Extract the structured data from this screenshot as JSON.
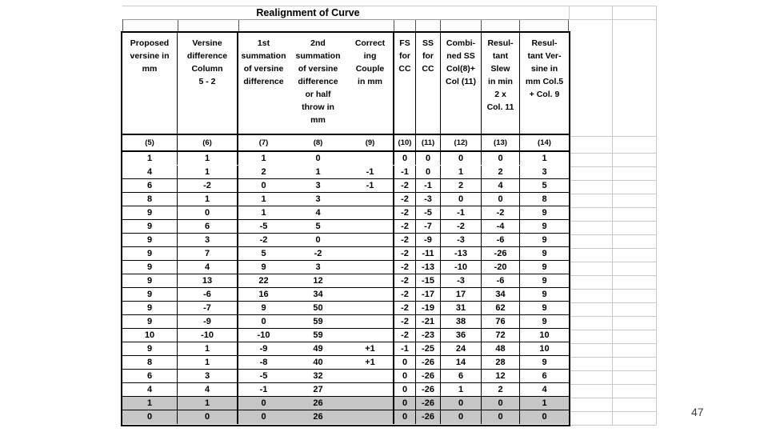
{
  "slide": {
    "title": "Realignment of Curve",
    "page_number": "47"
  },
  "table": {
    "headers": [
      {
        "label": "Proposed\nversine in\nmm",
        "col_no": "(5)"
      },
      {
        "label": "Versine\ndifference\nColumn\n5 - 2",
        "col_no": "(6)"
      },
      {
        "label": "1st\nsummation\nof versine\ndifference",
        "col_no": "(7)"
      },
      {
        "label": "2nd\nsummation\nof versine\ndifference\nor half\nthrow in\nmm",
        "col_no": "(8)"
      },
      {
        "label": "Correct\ning\nCouple\nin mm",
        "col_no": "(9)"
      },
      {
        "label": "FS\nfor\nCC",
        "col_no": "(10)"
      },
      {
        "label": "SS\nfor\nCC",
        "col_no": "(11)"
      },
      {
        "label": "Combi-\nned SS\nCol(8)+\nCol (11)",
        "col_no": "(12)"
      },
      {
        "label": "Resul-\ntant\nSlew\nin min\n2 x\nCol. 11",
        "col_no": "(13)"
      },
      {
        "label": "Resul-\ntant Ver-\nsine in\nmm Col.5\n+ Col. 9",
        "col_no": "(14)"
      }
    ],
    "rows": [
      {
        "shaded": false,
        "values": [
          "1",
          "1",
          "1",
          "0",
          "",
          "0",
          "0",
          "0",
          "0",
          "1"
        ]
      },
      {
        "shaded": false,
        "values": [
          "4",
          "1",
          "2",
          "1",
          "-1",
          "-1",
          "0",
          "1",
          "2",
          "3"
        ]
      },
      {
        "shaded": false,
        "values": [
          "6",
          "-2",
          "0",
          "3",
          "-1",
          "-2",
          "-1",
          "2",
          "4",
          "5"
        ]
      },
      {
        "shaded": false,
        "values": [
          "8",
          "1",
          "1",
          "3",
          "",
          "-2",
          "-3",
          "0",
          "0",
          "8"
        ]
      },
      {
        "shaded": false,
        "values": [
          "9",
          "0",
          "1",
          "4",
          "",
          "-2",
          "-5",
          "-1",
          "-2",
          "9"
        ]
      },
      {
        "shaded": false,
        "values": [
          "9",
          "6",
          "-5",
          "5",
          "",
          "-2",
          "-7",
          "-2",
          "-4",
          "9"
        ]
      },
      {
        "shaded": false,
        "values": [
          "9",
          "3",
          "-2",
          "0",
          "",
          "-2",
          "-9",
          "-3",
          "-6",
          "9"
        ]
      },
      {
        "shaded": false,
        "values": [
          "9",
          "7",
          "5",
          "-2",
          "",
          "-2",
          "-11",
          "-13",
          "-26",
          "9"
        ]
      },
      {
        "shaded": false,
        "values": [
          "9",
          "4",
          "9",
          "3",
          "",
          "-2",
          "-13",
          "-10",
          "-20",
          "9"
        ]
      },
      {
        "shaded": false,
        "values": [
          "9",
          "13",
          "22",
          "12",
          "",
          "-2",
          "-15",
          "-3",
          "-6",
          "9"
        ]
      },
      {
        "shaded": false,
        "values": [
          "9",
          "-6",
          "16",
          "34",
          "",
          "-2",
          "-17",
          "17",
          "34",
          "9"
        ]
      },
      {
        "shaded": false,
        "values": [
          "9",
          "-7",
          "9",
          "50",
          "",
          "-2",
          "-19",
          "31",
          "62",
          "9"
        ]
      },
      {
        "shaded": false,
        "values": [
          "9",
          "-9",
          "0",
          "59",
          "",
          "-2",
          "-21",
          "38",
          "76",
          "9"
        ]
      },
      {
        "shaded": false,
        "values": [
          "10",
          "-10",
          "-10",
          "59",
          "",
          "-2",
          "-23",
          "36",
          "72",
          "10"
        ]
      },
      {
        "shaded": false,
        "values": [
          "9",
          "1",
          "-9",
          "49",
          "+1",
          "-1",
          "-25",
          "24",
          "48",
          "10"
        ]
      },
      {
        "shaded": false,
        "values": [
          "8",
          "1",
          "-8",
          "40",
          "+1",
          "0",
          "-26",
          "14",
          "28",
          "9"
        ]
      },
      {
        "shaded": false,
        "values": [
          "6",
          "3",
          "-5",
          "32",
          "",
          "0",
          "-26",
          "6",
          "12",
          "6"
        ]
      },
      {
        "shaded": false,
        "values": [
          "4",
          "4",
          "-1",
          "27",
          "",
          "0",
          "-26",
          "1",
          "2",
          "4"
        ]
      },
      {
        "shaded": true,
        "values": [
          "1",
          "1",
          "0",
          "26",
          "",
          "0",
          "-26",
          "0",
          "0",
          "1"
        ]
      },
      {
        "shaded": true,
        "values": [
          "0",
          "0",
          "0",
          "26",
          "",
          "0",
          "-26",
          "0",
          "0",
          "0"
        ]
      }
    ]
  }
}
